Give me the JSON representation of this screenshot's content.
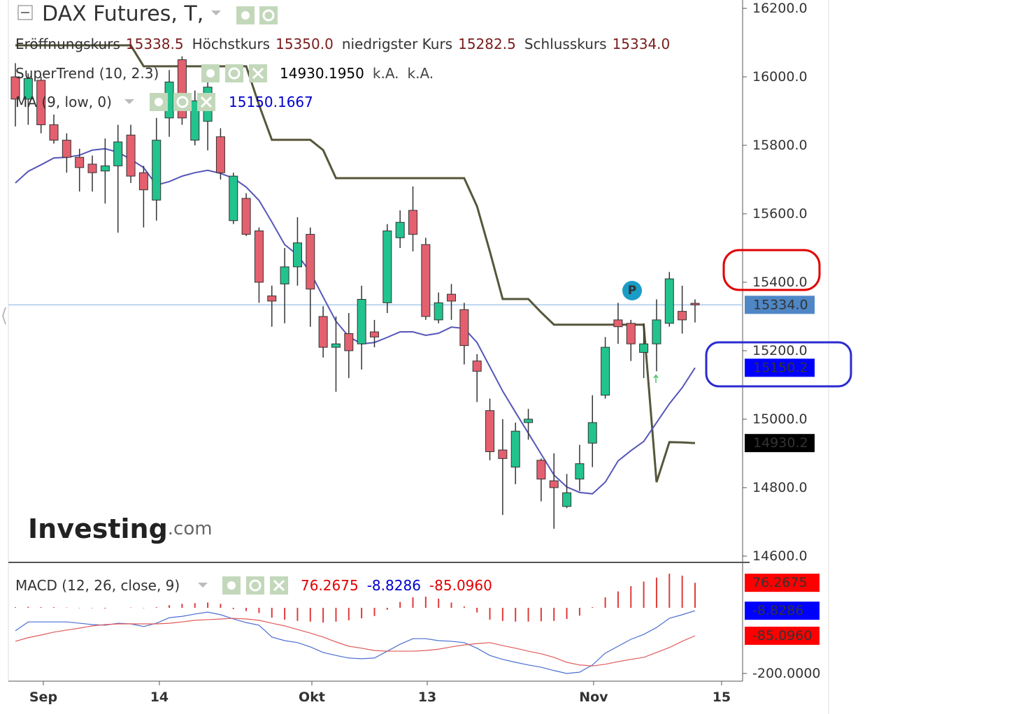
{
  "chart_data": [
    {
      "type": "candlestick",
      "title": "DAX Futures, T,",
      "header": [
        {
          "label": "Eröffnungskurs",
          "value": "15338.5"
        },
        {
          "label": "Höchstkurs",
          "value": "15350.0"
        },
        {
          "label": "niedrigster Kurs",
          "value": "15282.5"
        },
        {
          "label": "Schlusskurs",
          "value": "15334.0"
        }
      ],
      "ylim": [
        14581.6,
        16224.5
      ],
      "yticks": [
        {
          "value": 14600,
          "label": "14600.0"
        },
        {
          "value": 14800,
          "label": "14800.0"
        },
        {
          "value": 15000,
          "label": "15000.0"
        },
        {
          "value": 15200,
          "label": "15200.0"
        },
        {
          "value": 15400,
          "label": "15400.0"
        },
        {
          "value": 15600,
          "label": "15600.0"
        },
        {
          "value": 15800,
          "label": "15800.0"
        },
        {
          "value": 16000,
          "label": "16000.0"
        },
        {
          "value": 16200,
          "label": "16200.0"
        }
      ],
      "up_color": "#22c38e",
      "down_color": "#e4606f",
      "ohlc": {
        "open": [
          16000,
          15935,
          15990,
          15860,
          15815,
          15765,
          15745,
          15725,
          15740,
          15830,
          15720,
          15640,
          15880,
          16050,
          15815,
          15870,
          15825,
          15580,
          15645,
          15550,
          15360,
          15395,
          15445,
          15540,
          15300,
          15210,
          15250,
          15220,
          15255,
          15340,
          15530,
          15610,
          15510,
          15290,
          15365,
          15320,
          15170,
          15025,
          14910,
          14860,
          14990,
          14880,
          14820,
          14745,
          14825,
          14930,
          15070,
          15290,
          15280,
          15195,
          15220,
          15280,
          15315,
          15338.5
        ],
        "high": [
          16040,
          16010,
          16000,
          15890,
          15835,
          15790,
          15770,
          15820,
          15860,
          15860,
          15740,
          15880,
          16020,
          16060,
          15960,
          16000,
          15850,
          15720,
          15660,
          15560,
          15390,
          15500,
          15590,
          15560,
          15330,
          15300,
          15310,
          15390,
          15290,
          15570,
          15610,
          15680,
          15530,
          15370,
          15395,
          15340,
          15190,
          15060,
          15000,
          14990,
          15030,
          14885,
          14900,
          14840,
          14925,
          15070,
          15240,
          15340,
          15290,
          15280,
          15350,
          15430,
          15390,
          15350
        ],
        "low": [
          15855,
          15860,
          15835,
          15805,
          15720,
          15665,
          15665,
          15630,
          15545,
          15690,
          15560,
          15580,
          15825,
          15860,
          15800,
          15785,
          15700,
          15570,
          15535,
          15340,
          15270,
          15280,
          15390,
          15270,
          15180,
          15080,
          15120,
          15145,
          15210,
          15310,
          15500,
          15490,
          15290,
          15280,
          15290,
          15160,
          15050,
          14880,
          14720,
          14810,
          14940,
          14760,
          14680,
          14740,
          14790,
          14860,
          15060,
          15220,
          15170,
          15120,
          15140,
          15270,
          15250,
          15282.5
        ],
        "close": [
          15935,
          15995,
          15860,
          15815,
          15765,
          15735,
          15720,
          15740,
          15810,
          15710,
          15670,
          15815,
          15985,
          15880,
          15930,
          15970,
          15720,
          15710,
          15540,
          15400,
          15345,
          15445,
          15515,
          15380,
          15210,
          15220,
          15200,
          15350,
          15240,
          15550,
          15575,
          15540,
          15300,
          15340,
          15345,
          15215,
          15140,
          14905,
          14885,
          14965,
          15000,
          14825,
          14800,
          14785,
          14870,
          14990,
          15210,
          15270,
          15220,
          15220,
          15290,
          15410,
          15290,
          15334
        ]
      },
      "indicators": [
        {
          "label": "SuperTrend (10, 2.3)",
          "readout": [
            "14930.1950",
            "k.A.",
            "k.A."
          ],
          "readout_colors": [
            "#000000",
            "#444444",
            "#444444"
          ],
          "color": "#56563a",
          "values": [
            16092,
            16092,
            16092,
            16092,
            16092,
            16092,
            16092,
            16092,
            16092,
            16092,
            16031,
            16031,
            16031,
            16031,
            16031,
            16031,
            16031,
            16031,
            16031,
            15918,
            15816,
            15816,
            15816,
            15816,
            15786,
            15704,
            15704,
            15704,
            15704,
            15704,
            15704,
            15704,
            15704,
            15704,
            15704,
            15704,
            15622,
            15490,
            15351,
            15351,
            15351,
            15312,
            15276,
            15276,
            15276,
            15276,
            15276,
            15276,
            15276,
            15276,
            14816,
            14933,
            14932,
            14930.195
          ]
        },
        {
          "label": "MA (9, low, 0)",
          "readout": [
            "15150.1667"
          ],
          "readout_colors": [
            "#0000cc"
          ],
          "color": "#5656b8",
          "values": [
            15690,
            15724,
            15743,
            15763,
            15765,
            15771,
            15786,
            15790,
            15780,
            15759,
            15735,
            15684,
            15694,
            15710,
            15720,
            15727,
            15718,
            15704,
            15678,
            15639,
            15576,
            15510,
            15480,
            15429,
            15357,
            15286,
            15241,
            15220,
            15224,
            15239,
            15255,
            15255,
            15245,
            15251,
            15269,
            15265,
            15224,
            15153,
            15082,
            15020,
            14959,
            14898,
            14837,
            14802,
            14786,
            14782,
            14816,
            14878,
            14908,
            14935,
            14990,
            15045,
            15092,
            15150.1667
          ]
        }
      ],
      "badges": [
        {
          "value": 15334,
          "label": "15334.0",
          "color": "#4f87c6"
        },
        {
          "value": 15150.2,
          "label": "15150.2",
          "color": "#0000ff"
        },
        {
          "value": 14930.2,
          "label": "14930.2",
          "color": "#000000"
        }
      ],
      "marker": "P",
      "logo": {
        "name": "Investing",
        "suffix": ".com"
      }
    },
    {
      "type": "macd",
      "title": "MACD (12, 26, close, 9)",
      "readout": [
        "76.2675",
        "-8.8286",
        "-85.0960"
      ],
      "readout_colors": [
        "#e00000",
        "#0000cc",
        "#e00000"
      ],
      "ylim": [
        -223.4,
        123.4
      ],
      "yticks": [
        {
          "value": -200,
          "label": "-200.0000"
        }
      ],
      "xlim": [
        -0.545,
        56.71
      ],
      "xticks": [
        {
          "value": 2.18,
          "label": "Sep"
        },
        {
          "value": 11.23,
          "label": "14"
        },
        {
          "value": 23.12,
          "label": "Okt"
        },
        {
          "value": 32.12,
          "label": "13"
        },
        {
          "value": 45.09,
          "label": "Nov"
        },
        {
          "value": 55.07,
          "label": "15"
        }
      ],
      "histogram": {
        "color": "#e03a3a",
        "values": [
          2,
          3,
          2,
          2,
          1,
          -1,
          -1,
          -2,
          0,
          1,
          -1,
          2,
          8,
          12,
          14,
          16,
          12,
          -4,
          -10,
          -16,
          -30,
          -36,
          -40,
          -42,
          -45,
          -42,
          -38,
          -32,
          -25,
          -6,
          18,
          32,
          34,
          28,
          16,
          4,
          -14,
          -36,
          -40,
          -42,
          -42,
          -41,
          -40,
          -34,
          -24,
          2,
          32,
          50,
          66,
          80,
          92,
          104,
          98,
          76.2675
        ]
      },
      "series": [
        {
          "color": "#4a6fd0",
          "values": [
            -70,
            -43,
            -43,
            -43,
            -43,
            -47,
            -51,
            -53,
            -47,
            -49,
            -57,
            -47,
            -30,
            -26,
            -19,
            -13,
            -21,
            -34,
            -45,
            -53,
            -89,
            -100,
            -106,
            -119,
            -136,
            -145,
            -153,
            -155,
            -153,
            -132,
            -111,
            -94,
            -94,
            -100,
            -102,
            -106,
            -123,
            -145,
            -157,
            -166,
            -174,
            -181,
            -191,
            -200,
            -196,
            -174,
            -138,
            -117,
            -96,
            -81,
            -60,
            -32,
            -21,
            -8.8286
          ]
        },
        {
          "color": "#e05a5a",
          "values": [
            -102,
            -91,
            -83,
            -74,
            -68,
            -62,
            -55,
            -51,
            -49,
            -49,
            -49,
            -49,
            -47,
            -43,
            -38,
            -36,
            -34,
            -32,
            -34,
            -38,
            -47,
            -55,
            -66,
            -77,
            -89,
            -104,
            -117,
            -123,
            -130,
            -132,
            -132,
            -132,
            -130,
            -126,
            -119,
            -113,
            -109,
            -106,
            -115,
            -123,
            -132,
            -140,
            -151,
            -166,
            -174,
            -177,
            -172,
            -164,
            -157,
            -151,
            -136,
            -121,
            -102,
            -85.096
          ]
        }
      ],
      "badges": [
        {
          "value": 76.2675,
          "label": "76.2675",
          "color": "#ff0000"
        },
        {
          "value": -8.8286,
          "label": "-8.8286",
          "color": "#0000ff"
        },
        {
          "value": -85.096,
          "label": "-85.0960",
          "color": "#ff0000"
        }
      ]
    }
  ]
}
